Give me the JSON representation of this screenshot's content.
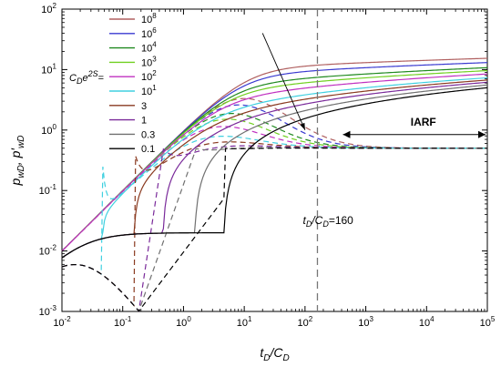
{
  "chart_data": {
    "type": "line",
    "title": "",
    "xlabel": "t_D/C_D",
    "ylabel": "p_wD, p'_wD",
    "x_scale": "log",
    "y_scale": "log",
    "xlim": [
      0.01,
      100000
    ],
    "ylim": [
      0.001,
      100
    ],
    "x_ticks": [
      {
        "base": "10",
        "exp": "-2"
      },
      {
        "base": "10",
        "exp": "-1"
      },
      {
        "base": "10",
        "exp": "0"
      },
      {
        "base": "10",
        "exp": "1"
      },
      {
        "base": "10",
        "exp": "2"
      },
      {
        "base": "10",
        "exp": "3"
      },
      {
        "base": "10",
        "exp": "4"
      },
      {
        "base": "10",
        "exp": "5"
      }
    ],
    "y_ticks": [
      {
        "base": "10",
        "exp": "-3"
      },
      {
        "base": "10",
        "exp": "-2"
      },
      {
        "base": "10",
        "exp": "-1"
      },
      {
        "base": "10",
        "exp": "0"
      },
      {
        "base": "10",
        "exp": "1"
      },
      {
        "base": "10",
        "exp": "2"
      }
    ],
    "legend": {
      "placement": "top-left",
      "title_base": "C",
      "title_sub": "D",
      "title_mid": "e",
      "title_sup": "2S",
      "title_end": "="
    },
    "series": [
      {
        "name": "10",
        "sup": "8",
        "value": 100000000.0,
        "color": "#b06060"
      },
      {
        "name": "10",
        "sup": "6",
        "value": 1000000.0,
        "color": "#3a3ad0"
      },
      {
        "name": "10",
        "sup": "4",
        "value": 10000.0,
        "color": "#208a20"
      },
      {
        "name": "10",
        "sup": "3",
        "value": 1000.0,
        "color": "#70d020"
      },
      {
        "name": "10",
        "sup": "2",
        "value": 100.0,
        "color": "#c030c0"
      },
      {
        "name": "10",
        "sup": "1",
        "value": 10.0,
        "color": "#40d0e0"
      },
      {
        "name": "3",
        "sup": "",
        "value": 3,
        "color": "#8a3a20"
      },
      {
        "name": "1",
        "sup": "",
        "value": 1,
        "color": "#7a2a9a"
      },
      {
        "name": "0.3",
        "sup": "",
        "value": 0.3,
        "color": "#707070"
      },
      {
        "name": "0.1",
        "sup": "",
        "value": 0.1,
        "color": "#000000"
      }
    ],
    "vertical_line": {
      "x": 160,
      "label_a": "t",
      "label_a_sub": "D",
      "label_b": "/C",
      "label_b_sub": "D",
      "label_c": "=160"
    },
    "annotation_iarf": {
      "text": "IARF",
      "x_start": 160,
      "x_end": 100000,
      "y": 1.0
    },
    "derivative_stabilization": 0.5
  }
}
